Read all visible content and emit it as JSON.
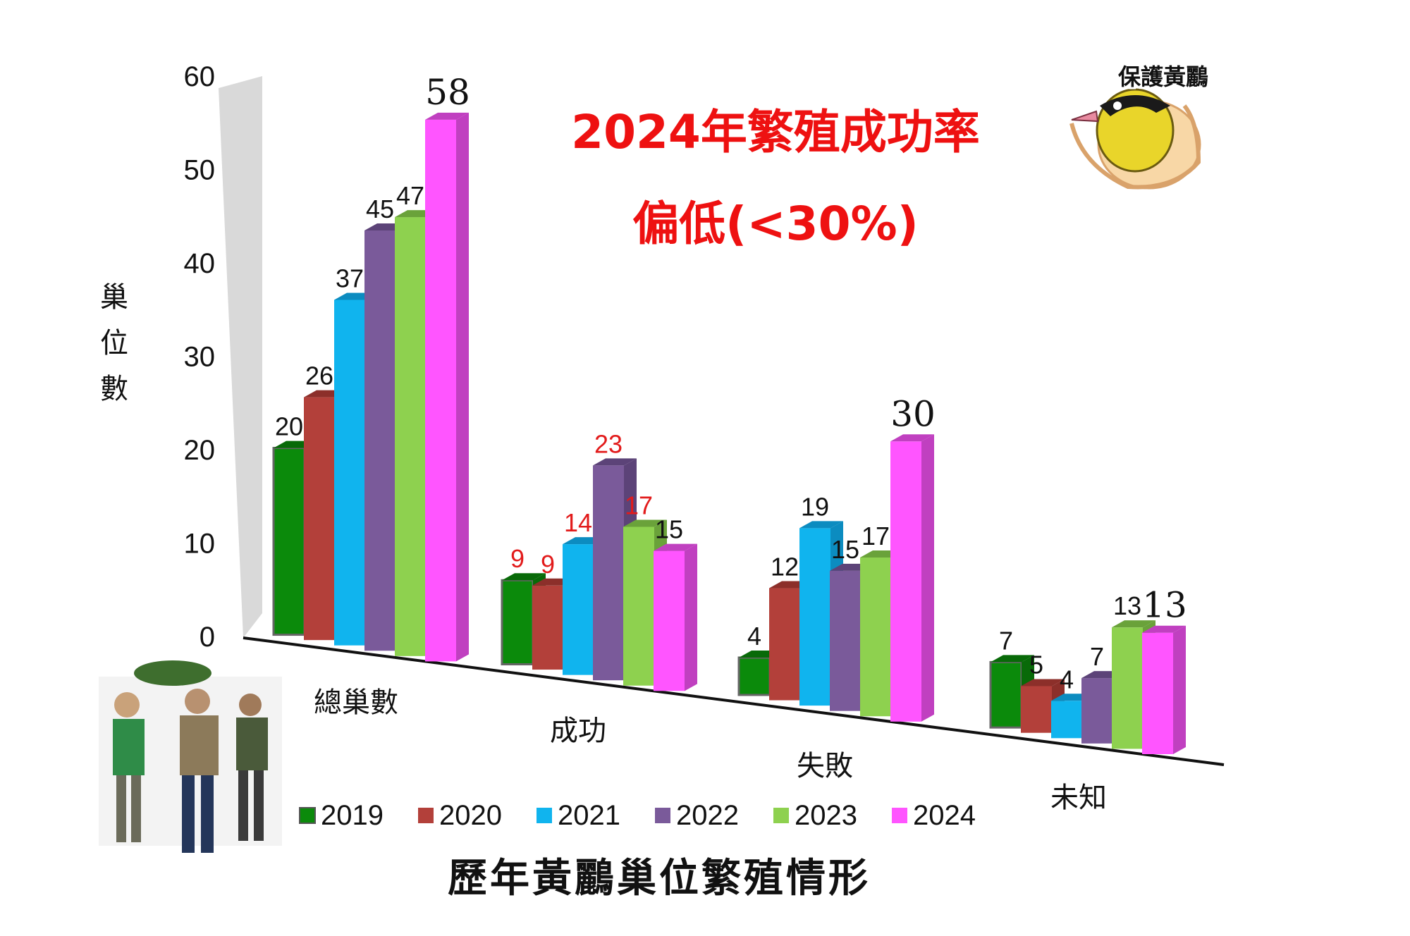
{
  "chart_data": {
    "type": "bar",
    "title": "歷年黃鸝巢位繁殖情形",
    "ylabel": "巢位數",
    "ylim": [
      0,
      60
    ],
    "yticks": [
      0,
      10,
      20,
      30,
      40,
      50,
      60
    ],
    "grid": false,
    "legend_position": "bottom",
    "categories": [
      "總巢數",
      "成功",
      "失敗",
      "未知"
    ],
    "series": [
      {
        "name": "2019",
        "color": "#0b8a0b",
        "side_color": "#086a08",
        "values": [
          20,
          9,
          4,
          7
        ]
      },
      {
        "name": "2020",
        "color": "#b3403a",
        "side_color": "#8c2f2a",
        "values": [
          26,
          9,
          12,
          5
        ]
      },
      {
        "name": "2021",
        "color": "#10b4ee",
        "side_color": "#0c8cc0",
        "values": [
          37,
          14,
          19,
          4
        ]
      },
      {
        "name": "2022",
        "color": "#7a5a9a",
        "side_color": "#5c4378",
        "values": [
          45,
          23,
          15,
          7
        ]
      },
      {
        "name": "2023",
        "color": "#8ed14f",
        "side_color": "#6aa23a",
        "values": [
          47,
          17,
          17,
          13
        ]
      },
      {
        "name": "2024",
        "color": "#ff55ff",
        "side_color": "#c040c0",
        "values": [
          58,
          15,
          30,
          13
        ]
      }
    ],
    "data_labels": [
      [
        "20",
        "26",
        "37",
        "45",
        "47",
        "58"
      ],
      [
        "9",
        "9",
        "14",
        "23",
        "17",
        "15"
      ],
      [
        "4",
        "12",
        "19",
        "15",
        "17",
        "30"
      ],
      [
        "7",
        "5",
        "4",
        "7",
        "13",
        "13"
      ]
    ],
    "label_colors": [
      [
        "#111111",
        "#111111",
        "#111111",
        "#111111",
        "#111111",
        "#111111"
      ],
      [
        "#e21b1b",
        "#e21b1b",
        "#e21b1b",
        "#e21b1b",
        "#e21b1b",
        "#111111"
      ],
      [
        "#111111",
        "#111111",
        "#111111",
        "#111111",
        "#111111",
        "#111111"
      ],
      [
        "#111111",
        "#111111",
        "#111111",
        "#111111",
        "#111111",
        "#111111"
      ]
    ]
  },
  "annotation": {
    "line1": "2024年繁殖成功率",
    "line2": "偏低(<30%)",
    "color": "#ee1111"
  },
  "logo": {
    "text": "保護黃鸝"
  }
}
